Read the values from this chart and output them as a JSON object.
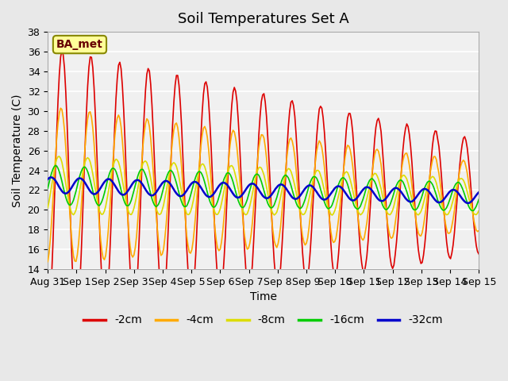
{
  "title": "Soil Temperatures Set A",
  "xlabel": "Time",
  "ylabel": "Soil Temperature (C)",
  "ylim": [
    14,
    38
  ],
  "yticks": [
    14,
    16,
    18,
    20,
    22,
    24,
    26,
    28,
    30,
    32,
    34,
    36,
    38
  ],
  "xtick_labels": [
    "Aug 31",
    "Sep 1",
    "Sep 2",
    "Sep 3",
    "Sep 4",
    "Sep 5",
    "Sep 6",
    "Sep 7",
    "Sep 8",
    "Sep 9",
    "Sep 10",
    "Sep 11",
    "Sep 12",
    "Sep 13",
    "Sep 14",
    "Sep 15"
  ],
  "series_colors": [
    "#dd0000",
    "#ffaa00",
    "#dddd00",
    "#00cc00",
    "#0000cc"
  ],
  "series_labels": [
    "-2cm",
    "-4cm",
    "-8cm",
    "-16cm",
    "-32cm"
  ],
  "series_linewidths": [
    1.2,
    1.2,
    1.2,
    1.2,
    1.8
  ],
  "bg_color": "#e8e8e8",
  "plot_bg_color": "#f0f0f0",
  "grid_color": "#ffffff",
  "annotation_text": "BA_met",
  "annotation_bg": "#ffff99",
  "annotation_border": "#888800",
  "n_points": 336,
  "days": 15,
  "title_fontsize": 13,
  "label_fontsize": 10,
  "tick_fontsize": 9
}
